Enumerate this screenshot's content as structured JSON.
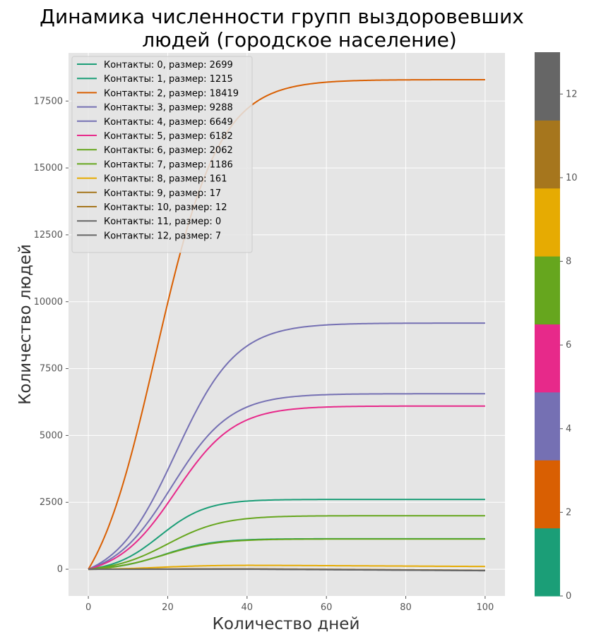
{
  "chart_data": {
    "type": "line",
    "title_line1": "Динамика численности групп выздоровевших",
    "title_line2": "людей (городское население)",
    "xlabel": "Количество дней",
    "ylabel": "Количество людей",
    "xlim": [
      -5,
      105
    ],
    "ylim": [
      -1000,
      19300
    ],
    "x_ticks": [
      0,
      20,
      40,
      60,
      80,
      100
    ],
    "y_ticks": [
      0,
      2500,
      5000,
      7500,
      10000,
      12500,
      15000,
      17500
    ],
    "grid": true,
    "legend_position": "top-left",
    "colorbar": {
      "range": [
        0,
        13
      ],
      "ticks": [
        0,
        2,
        4,
        6,
        8,
        10,
        12
      ],
      "colors": [
        "#1b9e77",
        "#d95f02",
        "#7570b3",
        "#e7298a",
        "#66a61e",
        "#e6ab02",
        "#a6761d",
        "#666666"
      ]
    },
    "series": [
      {
        "name": "Контакты: 0, размер: 2699",
        "color": "#1b9e77",
        "final": 2610,
        "midpoint": 18,
        "rate": 0.17,
        "decline": 0
      },
      {
        "name": "Контакты: 1, размер: 1215",
        "color": "#1b9e77",
        "final": 1140,
        "midpoint": 19,
        "rate": 0.16,
        "decline": 0
      },
      {
        "name": "Контакты: 2, размер: 18419",
        "color": "#d95f02",
        "final": 18300,
        "midpoint": 17,
        "rate": 0.125,
        "decline": 0
      },
      {
        "name": "Контакты: 3, размер: 9288",
        "color": "#7570b3",
        "final": 9200,
        "midpoint": 22,
        "rate": 0.13,
        "decline": 0
      },
      {
        "name": "Контакты: 4, размер: 6649",
        "color": "#7570b3",
        "final": 6560,
        "midpoint": 21,
        "rate": 0.135,
        "decline": 0
      },
      {
        "name": "Контакты: 5, размер: 6182",
        "color": "#e7298a",
        "final": 6100,
        "midpoint": 22,
        "rate": 0.135,
        "decline": 0
      },
      {
        "name": "Контакты: 6, размер: 2062",
        "color": "#66a61e",
        "final": 2000,
        "midpoint": 20,
        "rate": 0.145,
        "decline": 0
      },
      {
        "name": "Контакты: 7, размер: 1186",
        "color": "#66a61e",
        "final": 1130,
        "midpoint": 19,
        "rate": 0.15,
        "decline": 0
      },
      {
        "name": "Контакты: 8, размер: 161",
        "color": "#e6ab02",
        "final": 150,
        "midpoint": 18,
        "rate": 0.16,
        "decline": 0.8
      },
      {
        "name": "Контакты: 9, размер: 17",
        "color": "#a6761d",
        "final": 15,
        "midpoint": 18,
        "rate": 0.16,
        "decline": 0.9
      },
      {
        "name": "Контакты: 10, размер: 12",
        "color": "#a6761d",
        "final": 10,
        "midpoint": 18,
        "rate": 0.16,
        "decline": 0.9
      },
      {
        "name": "Контакты: 11, размер: 0",
        "color": "#666666",
        "final": 0,
        "midpoint": 18,
        "rate": 0.16,
        "decline": 0.9
      },
      {
        "name": "Контакты: 12, размер: 7",
        "color": "#666666",
        "final": 5,
        "midpoint": 18,
        "rate": 0.16,
        "decline": 0.9
      }
    ]
  }
}
